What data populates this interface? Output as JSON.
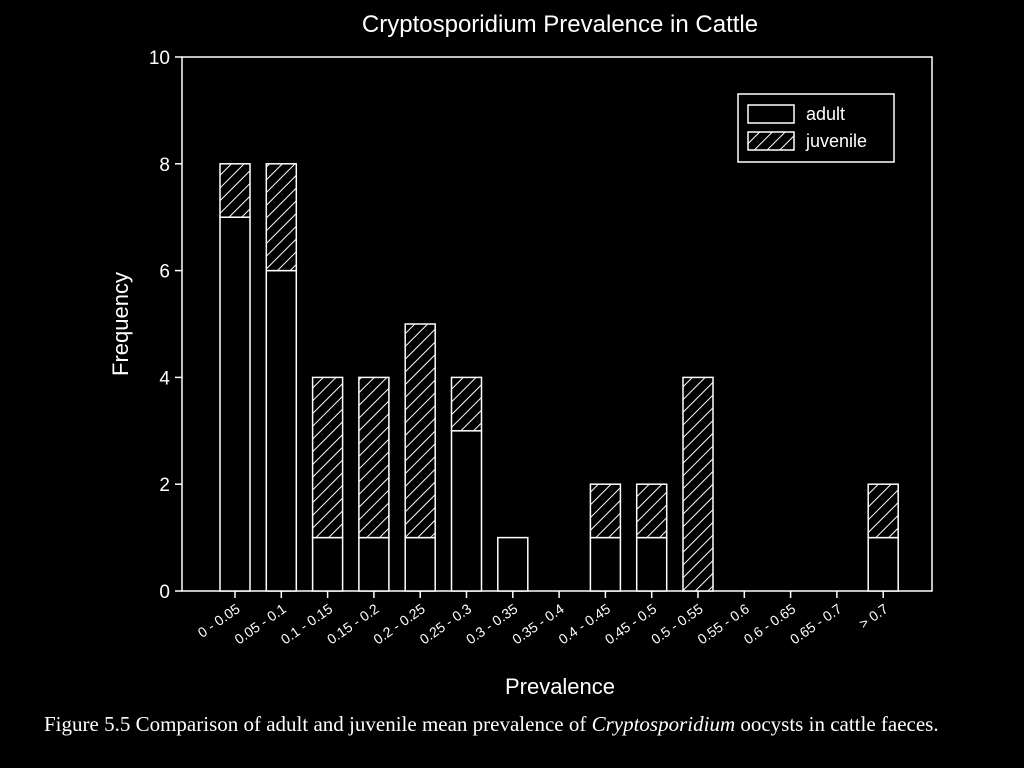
{
  "colors": {
    "background": "#000000",
    "ink": "#ffffff"
  },
  "caption": {
    "label": "Figure 5.5",
    "text_before": "Comparison of adult and juvenile mean prevalence of",
    "italic": "Cryptosporidium",
    "text_after": "oocysts in cattle faeces."
  },
  "chart_data": {
    "type": "bar",
    "stacked": true,
    "title": "Cryptosporidium Prevalence in Cattle",
    "xlabel": "Prevalence",
    "ylabel": "Frequency",
    "ylim": [
      0,
      10
    ],
    "yticks": [
      0,
      2,
      4,
      6,
      8,
      10
    ],
    "grid": false,
    "legend_position": "top-right",
    "categories": [
      "0 - 0.05",
      "0.05 - 0.1",
      "0.1 - 0.15",
      "0.15 - 0.2",
      "0.2 - 0.25",
      "0.25 - 0.3",
      "0.3 - 0.35",
      "0.35 - 0.4",
      "0.4 - 0.45",
      "0.45 - 0.5",
      "0.5 - 0.55",
      "0.55 - 0.6",
      "0.6 - 0.65",
      "0.65 - 0.7",
      "> 0.7"
    ],
    "series": [
      {
        "name": "adult",
        "pattern": "plain",
        "values": [
          7,
          6,
          1,
          1,
          1,
          3,
          1,
          0,
          1,
          1,
          0,
          0,
          0,
          0,
          1
        ]
      },
      {
        "name": "juvenile",
        "pattern": "hatched",
        "values": [
          1,
          2,
          3,
          3,
          4,
          1,
          0,
          0,
          1,
          1,
          4,
          0,
          0,
          0,
          1
        ]
      }
    ]
  }
}
